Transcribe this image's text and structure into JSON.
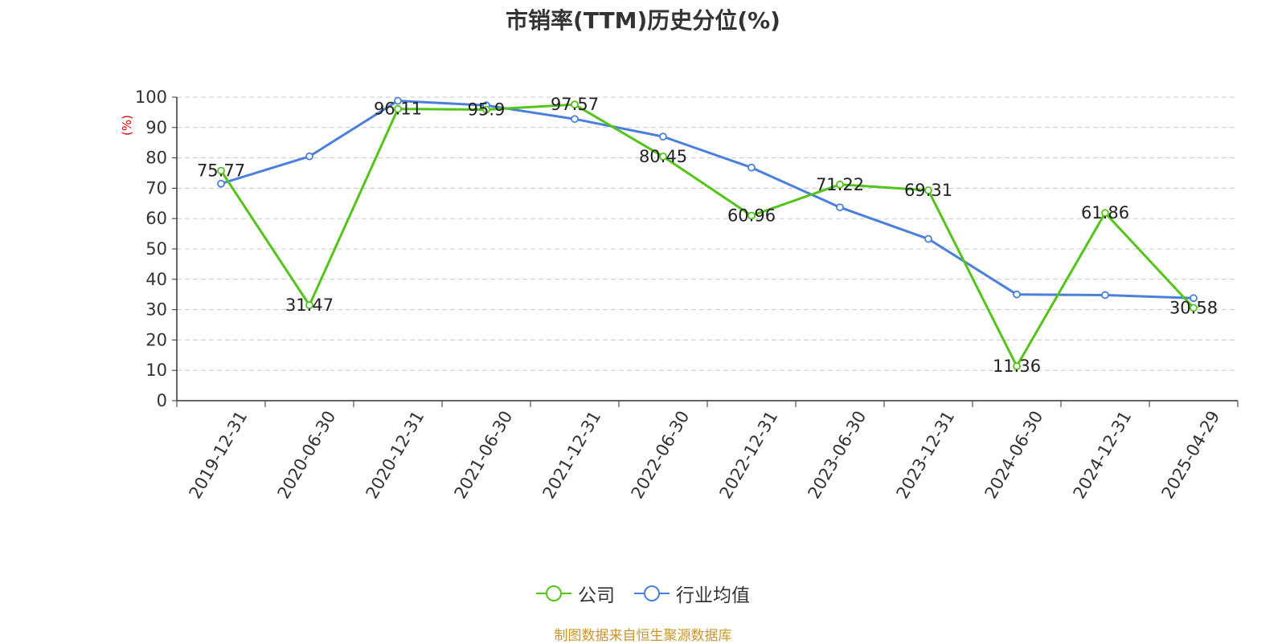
{
  "chart_data": {
    "type": "line",
    "title": "市销率(TTM)历史分位(%)",
    "ylabel": "(%)",
    "xlabel": "",
    "ylim": [
      0,
      100
    ],
    "yticks": [
      0,
      10,
      20,
      30,
      40,
      50,
      60,
      70,
      80,
      90,
      100
    ],
    "grid": true,
    "legend_position": "bottom",
    "categories": [
      "2019-12-31",
      "2020-06-30",
      "2020-12-31",
      "2021-06-30",
      "2021-12-31",
      "2022-06-30",
      "2022-12-31",
      "2023-06-30",
      "2023-12-31",
      "2024-06-30",
      "2024-12-31",
      "2025-04-29"
    ],
    "series": [
      {
        "name": "公司",
        "color": "#52c41a",
        "values": [
          75.77,
          31.47,
          96.11,
          95.9,
          97.57,
          80.45,
          60.96,
          71.22,
          69.31,
          11.36,
          61.86,
          30.58
        ],
        "labels": [
          "75.77",
          "31.47",
          "96.11",
          "95.9",
          "97.57",
          "80.45",
          "60.96",
          "71.22",
          "69.31",
          "11.36",
          "61.86",
          "30.58"
        ]
      },
      {
        "name": "行业均值",
        "color": "#4a7fdb",
        "values": [
          71.5,
          80.5,
          98.8,
          97.3,
          92.8,
          87.0,
          76.8,
          63.7,
          53.3,
          35.0,
          34.8,
          33.8
        ]
      }
    ]
  },
  "source": "制图数据来自恒生聚源数据库"
}
